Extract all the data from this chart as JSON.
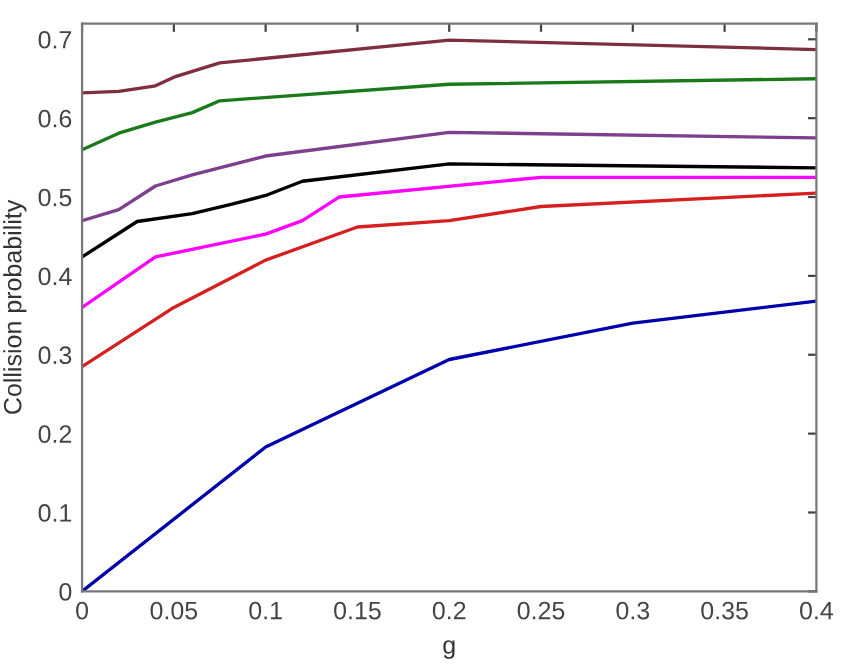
{
  "chart_data": {
    "type": "line",
    "xlabel": "g",
    "ylabel": "Collision probability",
    "xlim": [
      0,
      0.4
    ],
    "xticks": [
      0,
      0.05,
      0.1,
      0.15,
      0.2,
      0.25,
      0.3,
      0.35,
      0.4
    ],
    "ylim": [
      0,
      0.72
    ],
    "yticks": [
      0,
      0.1,
      0.2,
      0.3,
      0.4,
      0.5,
      0.6,
      0.7
    ],
    "grid": false,
    "legend": false,
    "marker": "none",
    "line_style": "solid",
    "series": [
      {
        "color": "#7e2f3f",
        "x": [
          0,
          0.02,
          0.04,
          0.05,
          0.075,
          0.2,
          0.4
        ],
        "values": [
          0.632,
          0.634,
          0.641,
          0.652,
          0.67,
          0.699,
          0.687
        ]
      },
      {
        "color": "#1a7a1a",
        "x": [
          0,
          0.02,
          0.04,
          0.06,
          0.075,
          0.2,
          0.4
        ],
        "values": [
          0.56,
          0.581,
          0.595,
          0.607,
          0.622,
          0.643,
          0.65
        ]
      },
      {
        "color": "#7e3f8e",
        "x": [
          0,
          0.02,
          0.04,
          0.06,
          0.1,
          0.2,
          0.4
        ],
        "values": [
          0.47,
          0.484,
          0.514,
          0.528,
          0.552,
          0.582,
          0.575
        ]
      },
      {
        "color": "#000000",
        "x": [
          0,
          0.03,
          0.06,
          0.08,
          0.1,
          0.12,
          0.2,
          0.4
        ],
        "values": [
          0.424,
          0.469,
          0.479,
          0.49,
          0.502,
          0.52,
          0.542,
          0.537
        ]
      },
      {
        "color": "#ff00ff",
        "x": [
          0,
          0.04,
          0.1,
          0.12,
          0.14,
          0.25,
          0.4
        ],
        "values": [
          0.36,
          0.424,
          0.453,
          0.47,
          0.5,
          0.525,
          0.525
        ]
      },
      {
        "color": "#d62020",
        "x": [
          0,
          0.05,
          0.1,
          0.15,
          0.2,
          0.25,
          0.4
        ],
        "values": [
          0.285,
          0.36,
          0.42,
          0.462,
          0.47,
          0.488,
          0.505
        ]
      },
      {
        "color": "#0000aa",
        "x": [
          0,
          0.1,
          0.2,
          0.3,
          0.4
        ],
        "values": [
          0,
          0.183,
          0.294,
          0.34,
          0.368
        ]
      }
    ]
  }
}
